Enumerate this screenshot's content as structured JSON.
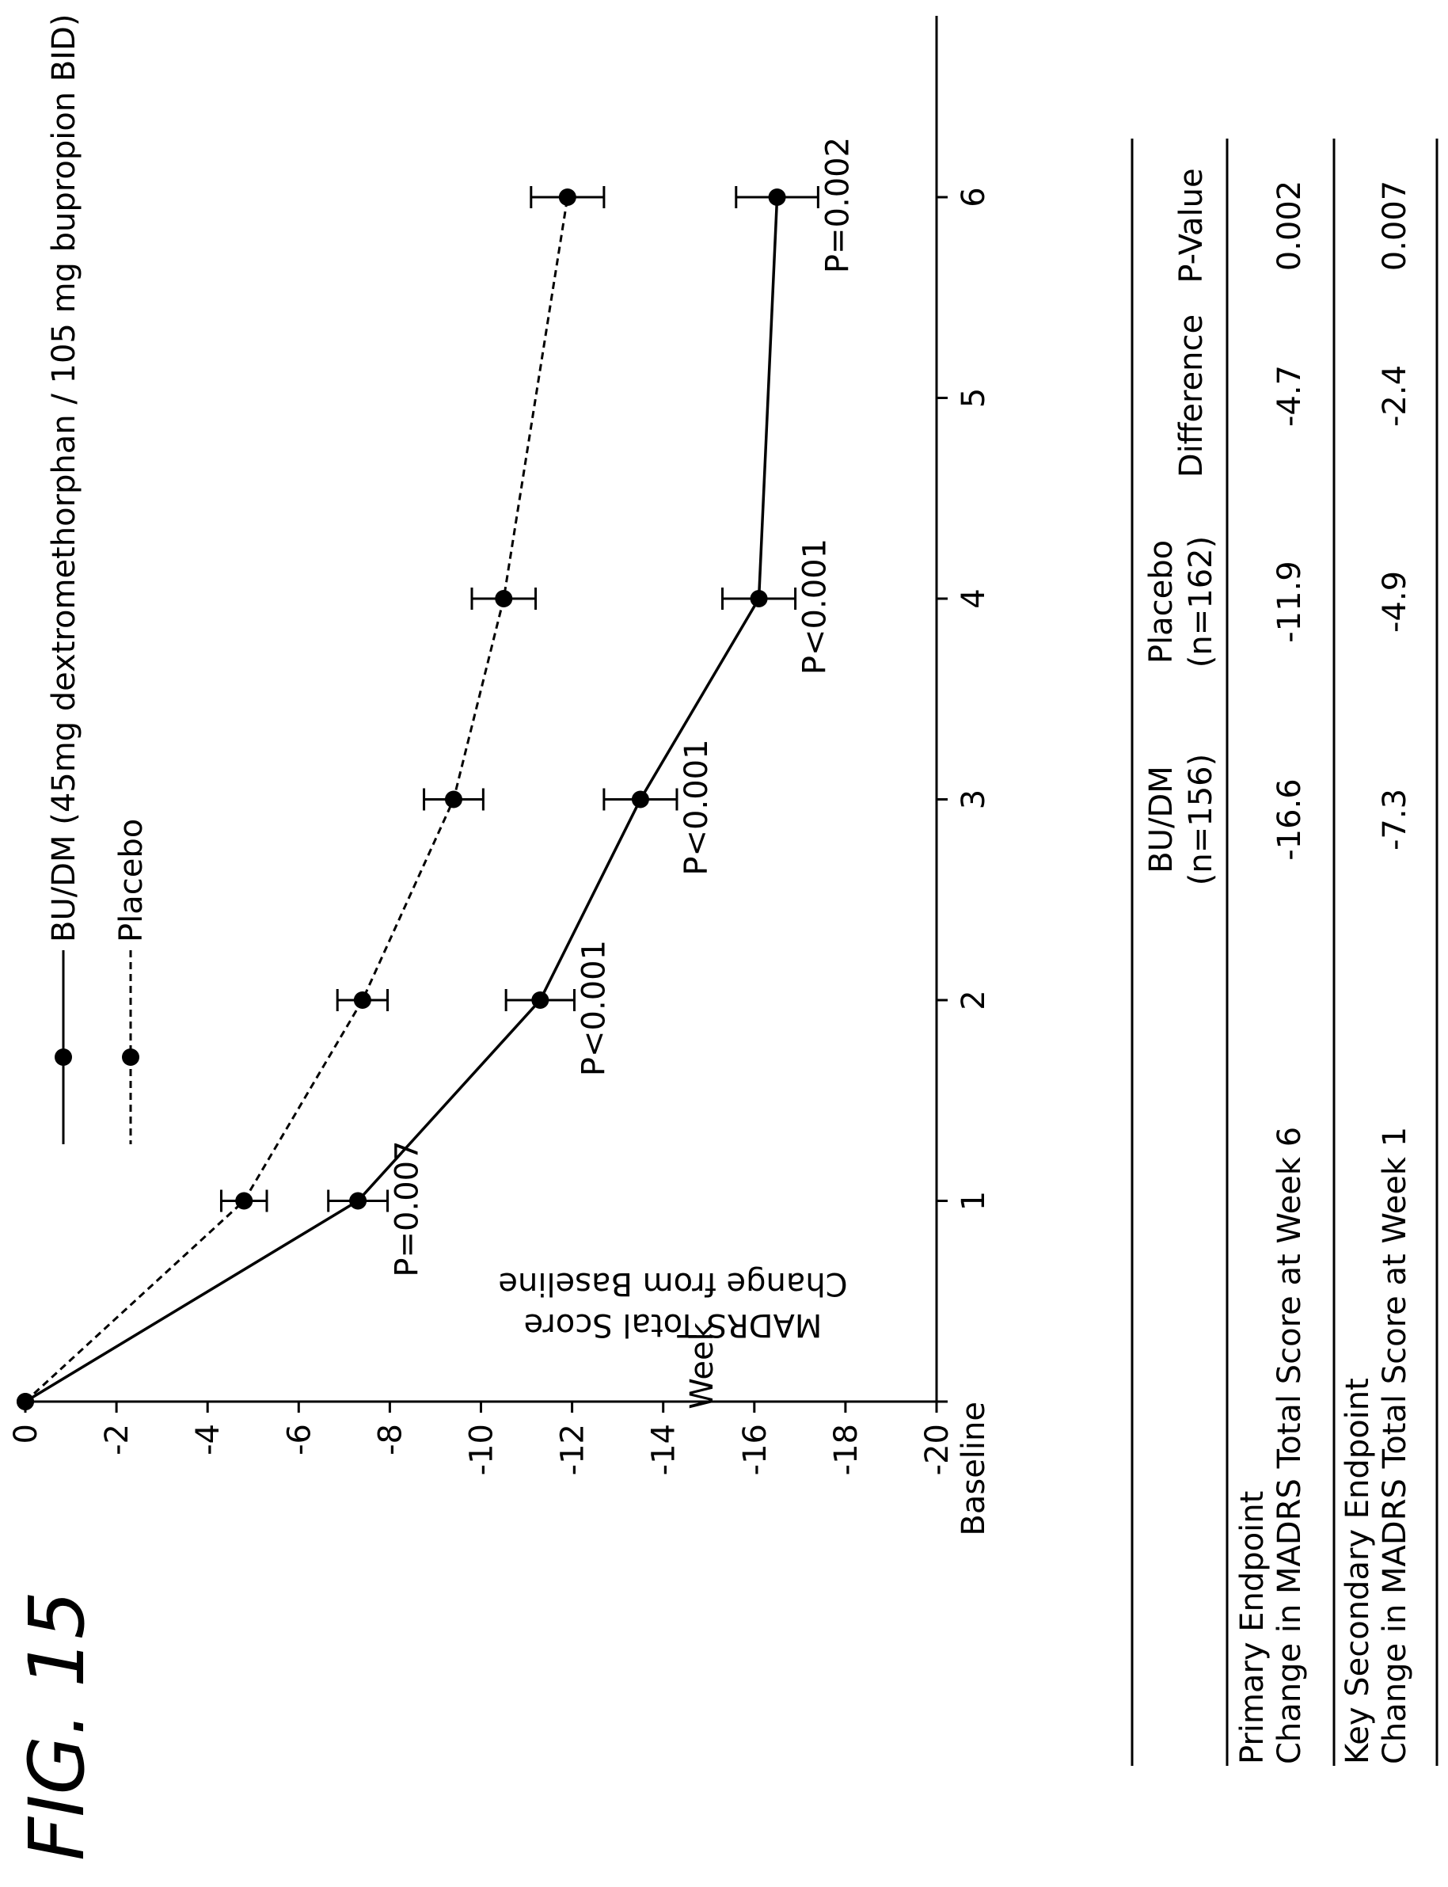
{
  "figure_label": "FIG. 15",
  "chart_data": {
    "type": "line",
    "title": "",
    "xlabel": "Week",
    "ylabel": [
      "MADRS Total Score",
      "Change from Baseline"
    ],
    "categories": [
      "Baseline",
      "1",
      "2",
      "3",
      "4",
      "5",
      "6"
    ],
    "x": [
      0,
      1,
      2,
      3,
      4,
      6
    ],
    "ylim": [
      -20,
      0
    ],
    "yticks": [
      0,
      -2,
      -4,
      -6,
      -8,
      -10,
      -12,
      -14,
      -16,
      -18,
      -20
    ],
    "series": [
      {
        "name": "BU/DM (45mg dextromethorphan / 105 mg bupropion BID)",
        "line_style": "solid",
        "x": [
          0,
          1,
          2,
          3,
          4,
          6
        ],
        "values": [
          0,
          -7.3,
          -11.3,
          -13.5,
          -16.1,
          -16.5
        ],
        "error": [
          0,
          0.65,
          0.75,
          0.8,
          0.8,
          0.9
        ]
      },
      {
        "name": "Placebo",
        "line_style": "dashed",
        "x": [
          0,
          1,
          2,
          3,
          4,
          6
        ],
        "values": [
          0,
          -4.8,
          -7.4,
          -9.4,
          -10.5,
          -11.9
        ],
        "error": [
          0,
          0.5,
          0.55,
          0.65,
          0.7,
          0.8
        ]
      }
    ],
    "annotations": [
      {
        "x": 1,
        "text": "P=0.007"
      },
      {
        "x": 2,
        "text": "P<0.001"
      },
      {
        "x": 3,
        "text": "P<0.001"
      },
      {
        "x": 4,
        "text": "P<0.001"
      },
      {
        "x": 6,
        "text": "P=0.002"
      }
    ],
    "legend_position": "top"
  },
  "table": {
    "headers": [
      [
        "BU/DM",
        "(n=156)"
      ],
      [
        "Placebo",
        "(n=162)"
      ],
      [
        "Difference"
      ],
      [
        "P-Value"
      ]
    ],
    "rows": [
      {
        "label": [
          "Primary Endpoint",
          "Change in MADRS Total Score at Week 6"
        ],
        "cells": [
          "-16.6",
          "-11.9",
          "-4.7",
          "0.002"
        ]
      },
      {
        "label": [
          "Key Secondary Endpoint",
          "Change in MADRS Total Score at Week 1"
        ],
        "cells": [
          "-7.3",
          "-4.9",
          "-2.4",
          "0.007"
        ]
      }
    ]
  }
}
